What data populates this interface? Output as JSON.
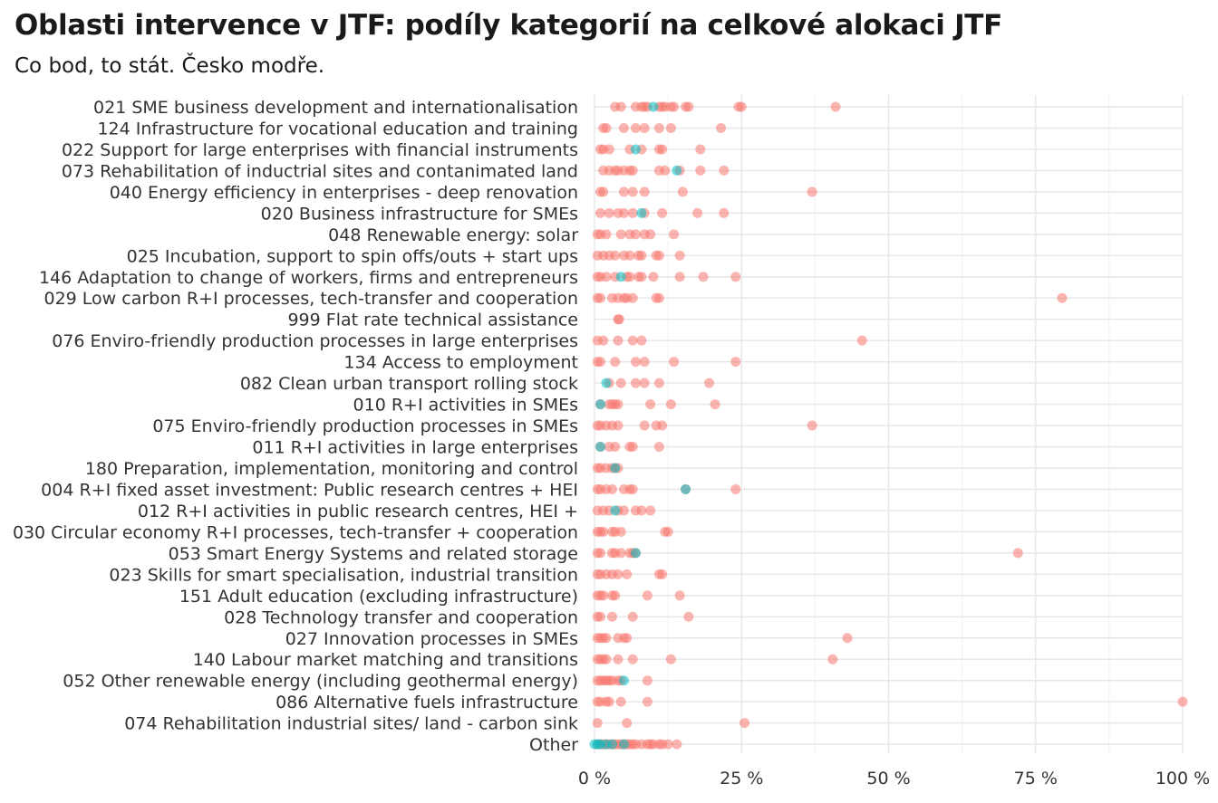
{
  "title": "Oblasti intervence v JTF: podíly kategorií na celkové alokaci JTF",
  "subtitle": "Co bod, to stát. Česko modře.",
  "colors": {
    "other_states": "#F8766D",
    "czechia": "#00BFC4"
  },
  "chart_data": {
    "type": "scatter",
    "xlim": [
      0,
      1
    ],
    "x_ticks": [
      0,
      0.25,
      0.5,
      0.75,
      1.0
    ],
    "x_tick_labels": [
      "0 %",
      "25 %",
      "50 %",
      "75 %",
      "100 %"
    ],
    "grid": true,
    "categories": [
      "021 SME business development and internationalisation",
      "124 Infrastructure for vocational education and training",
      "022 Support for large enterprises with financial instruments",
      "073 Rehabilitation of inductrial sites and contanimated land",
      "040 Energy efficiency in enterprises - deep renovation",
      "020 Business infrastructure for SMEs",
      "048 Renewable energy: solar",
      "025 Incubation, support to spin offs/outs + start ups",
      "146 Adaptation to change of workers, firms and entrepreneurs",
      "029 Low carbon R+I processes, tech-transfer and cooperation",
      "999 Flat rate technical assistance",
      "076 Enviro-friendly production processes in large enterprises",
      "134 Access to employment",
      "082 Clean urban transport rolling stock",
      "010 R+I activities in SMEs",
      "075 Enviro-friendly production processes in SMEs",
      "011 R+I activities in large enterprises",
      "180 Preparation, implementation, monitoring and control",
      "004 R+I fixed asset investment: Public research centres + HEI",
      "012 R+I activities in public research centres, HEI +",
      "030 Circular economy R+I processes, tech-transfer + cooperation",
      "053 Smart Energy Systems and related storage",
      "023 Skills for smart specialisation, industrial transition",
      "151 Adult education (excluding infrastructure)",
      "028 Technology transfer and cooperation",
      "027 Innovation processes in SMEs",
      "140 Labour market matching and transitions",
      "052 Other renewable energy (including geothermal energy)",
      "086 Alternative fuels infrastructure",
      "074 Rehabilitation industrial sites/ land - carbon sink",
      "Other"
    ],
    "series": [
      {
        "values": [
          [
            0.035,
            0.045,
            0.07,
            0.08,
            0.085,
            0.09,
            0.11,
            0.115,
            0.12,
            0.13,
            0.135,
            0.155,
            0.16,
            0.245,
            0.25,
            0.41
          ],
          [
            0.015,
            0.02,
            0.05,
            0.07,
            0.085,
            0.11,
            0.13,
            0.215
          ],
          [
            0.01,
            0.015,
            0.025,
            0.06,
            0.08,
            0.11,
            0.115,
            0.18
          ],
          [
            0.015,
            0.025,
            0.035,
            0.04,
            0.05,
            0.06,
            0.065,
            0.11,
            0.12,
            0.145,
            0.18,
            0.22
          ],
          [
            0.01,
            0.015,
            0.05,
            0.065,
            0.085,
            0.15,
            0.37
          ],
          [
            0.01,
            0.025,
            0.04,
            0.05,
            0.065,
            0.085,
            0.115,
            0.175,
            0.22
          ],
          [
            0.005,
            0.01,
            0.02,
            0.045,
            0.06,
            0.07,
            0.085,
            0.095,
            0.135
          ],
          [
            0.005,
            0.015,
            0.025,
            0.035,
            0.05,
            0.06,
            0.075,
            0.08,
            0.105,
            0.11,
            0.145
          ],
          [
            0.005,
            0.01,
            0.02,
            0.035,
            0.055,
            0.06,
            0.075,
            0.08,
            0.1,
            0.145,
            0.185,
            0.24
          ],
          [
            0.005,
            0.01,
            0.03,
            0.04,
            0.05,
            0.055,
            0.065,
            0.105,
            0.11,
            0.795
          ],
          [
            0.04,
            0.042
          ],
          [
            0.005,
            0.015,
            0.04,
            0.065,
            0.08,
            0.455
          ],
          [
            0.005,
            0.01,
            0.035,
            0.07,
            0.085,
            0.135,
            0.24
          ],
          [
            0.025,
            0.045,
            0.07,
            0.085,
            0.11,
            0.195
          ],
          [
            0.01,
            0.025,
            0.03,
            0.035,
            0.04,
            0.095,
            0.13,
            0.205
          ],
          [
            0.005,
            0.01,
            0.02,
            0.03,
            0.04,
            0.085,
            0.105,
            0.115,
            0.37
          ],
          [
            0.01,
            0.025,
            0.035,
            0.06,
            0.065,
            0.11
          ],
          [
            0.005,
            0.01,
            0.02,
            0.03,
            0.035,
            0.04
          ],
          [
            0.005,
            0.01,
            0.02,
            0.03,
            0.05,
            0.06,
            0.065,
            0.155,
            0.24
          ],
          [
            0.005,
            0.015,
            0.025,
            0.04,
            0.05,
            0.07,
            0.08,
            0.095
          ],
          [
            0.005,
            0.01,
            0.015,
            0.03,
            0.035,
            0.045,
            0.12,
            0.125
          ],
          [
            0.005,
            0.01,
            0.03,
            0.035,
            0.045,
            0.06,
            0.065,
            0.07,
            0.72
          ],
          [
            0.005,
            0.01,
            0.02,
            0.03,
            0.04,
            0.055,
            0.11,
            0.115
          ],
          [
            0.005,
            0.01,
            0.015,
            0.03,
            0.035,
            0.09,
            0.145
          ],
          [
            0.005,
            0.01,
            0.03,
            0.065,
            0.16
          ],
          [
            0.005,
            0.01,
            0.015,
            0.02,
            0.04,
            0.05,
            0.055,
            0.43
          ],
          [
            0.005,
            0.01,
            0.015,
            0.02,
            0.04,
            0.065,
            0.13,
            0.405
          ],
          [
            0.005,
            0.01,
            0.015,
            0.02,
            0.025,
            0.03,
            0.04,
            0.045,
            0.09
          ],
          [
            0.005,
            0.01,
            0.02,
            0.025,
            0.045,
            0.09,
            1.0
          ],
          [
            0.005,
            0.055,
            0.255
          ],
          [
            0.005,
            0.01,
            0.015,
            0.02,
            0.025,
            0.03,
            0.035,
            0.04,
            0.045,
            0.05,
            0.055,
            0.06,
            0.065,
            0.07,
            0.08,
            0.09,
            0.095,
            0.1,
            0.11,
            0.115,
            0.125,
            0.14
          ]
        ]
      },
      {
        "values": [
          [
            0.1
          ],
          [],
          [
            0.07
          ],
          [
            0.14
          ],
          [],
          [
            0.08
          ],
          [],
          [],
          [
            0.045
          ],
          [],
          [],
          [],
          [],
          [
            0.02
          ],
          [
            0.01
          ],
          [],
          [
            0.01
          ],
          [
            0.035
          ],
          [
            0.155
          ],
          [
            0.035
          ],
          [],
          [
            0.07
          ],
          [],
          [],
          [],
          [],
          [],
          [
            0.05
          ],
          [],
          [],
          [
            0.0,
            0.005,
            0.01,
            0.02,
            0.03,
            0.05
          ]
        ]
      }
    ]
  }
}
